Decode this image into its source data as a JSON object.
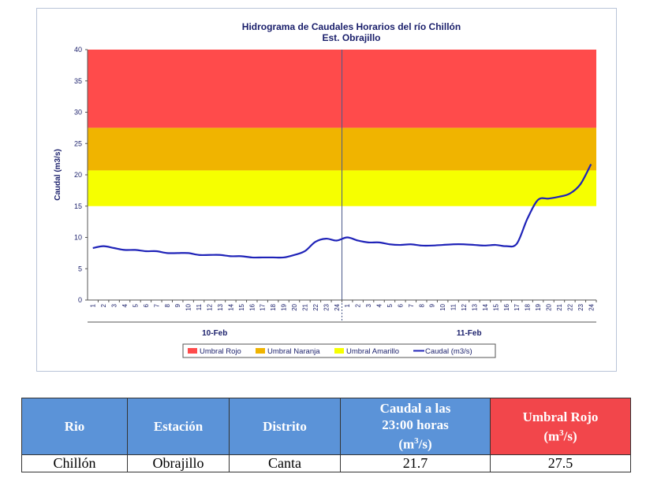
{
  "chart_data": {
    "type": "line",
    "title": "Hidrograma de Caudales Horarios del río Chillón",
    "subtitle": "Est. Obrajillo",
    "ylabel": "Caudal  (m3/s)",
    "ylim": [
      0,
      40
    ],
    "yticks": [
      "0",
      "5",
      "10",
      "15",
      "20",
      "25",
      "30",
      "35",
      "40"
    ],
    "day_labels": [
      "10-Feb",
      "11-Feb"
    ],
    "hour_ticks": [
      "1",
      "2",
      "3",
      "4",
      "5",
      "6",
      "7",
      "8",
      "9",
      "10",
      "11",
      "12",
      "13",
      "14",
      "15",
      "16",
      "17",
      "18",
      "19",
      "20",
      "21",
      "22",
      "23",
      "24"
    ],
    "bands": [
      {
        "name": "Umbral Rojo",
        "from": 27.5,
        "to": 40,
        "color": "#ff4b4b"
      },
      {
        "name": "Umbral Naranja",
        "from": 20.7,
        "to": 27.5,
        "color": "#f0b400"
      },
      {
        "name": "Umbral Amarillo",
        "from": 15,
        "to": 20.7,
        "color": "#f6ff00"
      }
    ],
    "series": [
      {
        "name": "Caudal (m3/s)",
        "color": "#1f23b8",
        "x_start_hour": 0.5,
        "values": [
          8.3,
          8.6,
          8.3,
          8.0,
          8.0,
          7.8,
          7.8,
          7.5,
          7.5,
          7.5,
          7.2,
          7.2,
          7.2,
          7.0,
          7.0,
          6.8,
          6.8,
          6.8,
          6.8,
          7.2,
          7.8,
          9.3,
          9.8,
          9.5,
          10.0,
          9.5,
          9.2,
          9.2,
          8.9,
          8.8,
          8.9,
          8.7,
          8.7,
          8.8,
          8.9,
          8.9,
          8.8,
          8.7,
          8.8,
          8.6,
          9.0,
          13.0,
          16.0,
          16.2,
          16.5,
          17.0,
          18.5,
          21.7
        ]
      }
    ],
    "legend": [
      "Umbral Rojo",
      "Umbral Naranja",
      "Umbral Amarillo",
      "Caudal (m3/s)"
    ],
    "legend_position": "bottom",
    "grid": false
  },
  "table": {
    "headers": [
      {
        "line1": "Rio"
      },
      {
        "line1": "Estación"
      },
      {
        "line1": "Distrito"
      },
      {
        "line1": "Caudal a las",
        "line2": "23:00 horas",
        "line3": "(m",
        "line3_sup": "3",
        "line3_end": "/s)"
      },
      {
        "line1": "Umbral Rojo",
        "line2": "(m",
        "line2_sup": "3",
        "line2_end": "/s)"
      }
    ],
    "row": [
      "Chillón",
      "Obrajillo",
      "Canta",
      "21.7",
      "27.5"
    ]
  }
}
